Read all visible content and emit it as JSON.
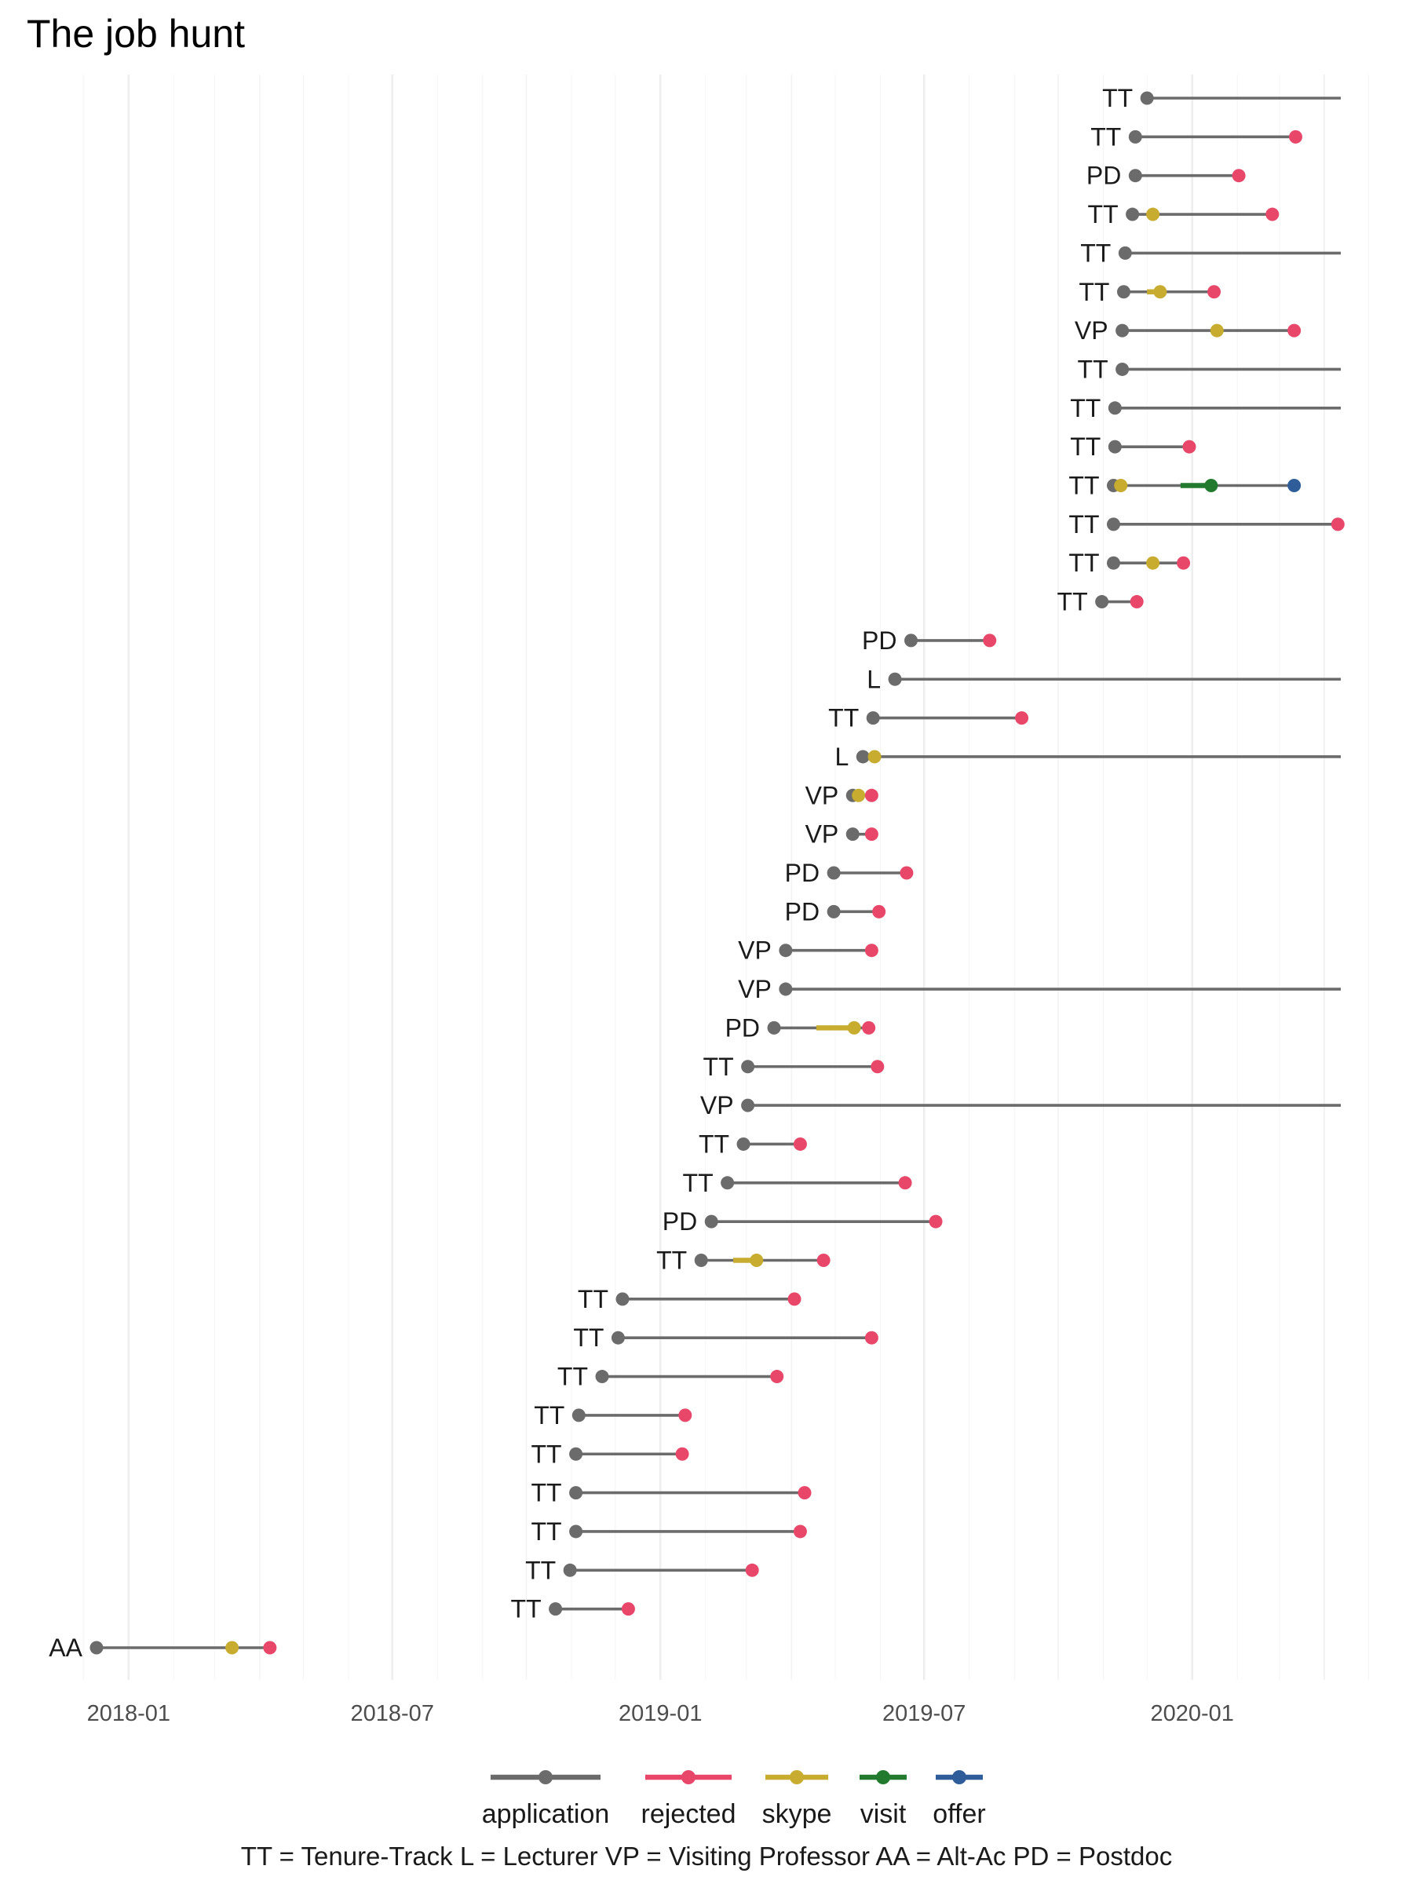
{
  "chart_data": {
    "type": "timeline",
    "title": "The job hunt",
    "x_axis": {
      "type": "date",
      "range": [
        "2017-11-05",
        "2020-05-10"
      ],
      "ticks": [
        "2018-01-01",
        "2018-07-01",
        "2019-01-01",
        "2019-07-01",
        "2020-01-01"
      ],
      "tick_labels": [
        "2018-01",
        "2018-07",
        "2019-01",
        "2019-07",
        "2020-01"
      ],
      "end_date": "2020-04-12"
    },
    "grid": true,
    "stages": [
      {
        "key": "application",
        "name": "application",
        "color": "#6b6b6b"
      },
      {
        "key": "rejected",
        "name": "rejected",
        "color": "#e8476a"
      },
      {
        "key": "skype",
        "name": "skype",
        "color": "#c7ac30"
      },
      {
        "key": "visit",
        "name": "visit",
        "color": "#217a2e"
      },
      {
        "key": "offer",
        "name": "offer",
        "color": "#2f5d99"
      }
    ],
    "legend_position": "bottom",
    "caption": "TT = Tenure-Track    L = Lecturer    VP = Visiting Professor    AA = Alt-Ac    PD = Postdoc",
    "jobs": [
      {
        "label": "TT",
        "application": "2019-12-01",
        "open": true
      },
      {
        "label": "TT",
        "application": "2019-11-23",
        "rejected": "2020-03-12"
      },
      {
        "label": "PD",
        "application": "2019-11-23",
        "rejected": "2020-02-02"
      },
      {
        "label": "TT",
        "application": "2019-11-21",
        "skype": "2019-12-05",
        "rejected": "2020-02-25"
      },
      {
        "label": "TT",
        "application": "2019-11-16",
        "open": true
      },
      {
        "label": "TT",
        "application": "2019-11-15",
        "skype_start": "2019-12-01",
        "skype": "2019-12-10",
        "rejected": "2020-01-16"
      },
      {
        "label": "VP",
        "application": "2019-11-14",
        "skype": "2020-01-18",
        "rejected": "2020-03-11"
      },
      {
        "label": "TT",
        "application": "2019-11-14",
        "open": true
      },
      {
        "label": "TT",
        "application": "2019-11-09",
        "open": true
      },
      {
        "label": "TT",
        "application": "2019-11-09",
        "rejected": "2019-12-30"
      },
      {
        "label": "TT",
        "application": "2019-11-08",
        "skype": "2019-11-13",
        "visit_start": "2019-12-24",
        "visit": "2020-01-14",
        "offer": "2020-03-11"
      },
      {
        "label": "TT",
        "application": "2019-11-08",
        "rejected": "2020-04-10"
      },
      {
        "label": "TT",
        "application": "2019-11-08",
        "skype": "2019-12-05",
        "rejected": "2019-12-26"
      },
      {
        "label": "TT",
        "application": "2019-10-31",
        "rejected": "2019-11-24"
      },
      {
        "label": "PD",
        "application": "2019-06-22",
        "rejected": "2019-08-15"
      },
      {
        "label": "L",
        "application": "2019-06-11",
        "open": true
      },
      {
        "label": "TT",
        "application": "2019-05-27",
        "rejected": "2019-09-06"
      },
      {
        "label": "L",
        "application": "2019-05-20",
        "skype": "2019-05-28",
        "open": true
      },
      {
        "label": "VP",
        "application": "2019-05-13",
        "skype": "2019-05-17",
        "rejected": "2019-05-26"
      },
      {
        "label": "VP",
        "application": "2019-05-13",
        "rejected": "2019-05-26"
      },
      {
        "label": "PD",
        "application": "2019-04-30",
        "rejected": "2019-06-19"
      },
      {
        "label": "PD",
        "application": "2019-04-30",
        "rejected": "2019-05-31"
      },
      {
        "label": "VP",
        "application": "2019-03-28",
        "rejected": "2019-05-26"
      },
      {
        "label": "VP",
        "application": "2019-03-28",
        "open": true
      },
      {
        "label": "PD",
        "application": "2019-03-20",
        "skype_start": "2019-04-18",
        "skype": "2019-05-14",
        "rejected": "2019-05-24"
      },
      {
        "label": "TT",
        "application": "2019-03-02",
        "rejected": "2019-05-30"
      },
      {
        "label": "VP",
        "application": "2019-03-02",
        "open": true
      },
      {
        "label": "TT",
        "application": "2019-02-27",
        "rejected": "2019-04-07"
      },
      {
        "label": "TT",
        "application": "2019-02-16",
        "rejected": "2019-06-18"
      },
      {
        "label": "PD",
        "application": "2019-02-05",
        "rejected": "2019-07-09"
      },
      {
        "label": "TT",
        "application": "2019-01-29",
        "skype_start": "2019-02-20",
        "skype": "2019-03-08",
        "rejected": "2019-04-23"
      },
      {
        "label": "TT",
        "application": "2018-12-06",
        "rejected": "2019-04-03"
      },
      {
        "label": "TT",
        "application": "2018-12-03",
        "rejected": "2019-05-26"
      },
      {
        "label": "TT",
        "application": "2018-11-22",
        "rejected": "2019-03-22"
      },
      {
        "label": "TT",
        "application": "2018-11-06",
        "rejected": "2019-01-18"
      },
      {
        "label": "TT",
        "application": "2018-11-04",
        "rejected": "2019-01-16"
      },
      {
        "label": "TT",
        "application": "2018-11-04",
        "rejected": "2019-04-10"
      },
      {
        "label": "TT",
        "application": "2018-11-04",
        "rejected": "2019-04-07"
      },
      {
        "label": "TT",
        "application": "2018-10-31",
        "rejected": "2019-03-05"
      },
      {
        "label": "TT",
        "application": "2018-10-21",
        "rejected": "2018-12-10"
      },
      {
        "label": "AA",
        "application": "2017-12-10",
        "skype": "2018-03-13",
        "rejected": "2018-04-08"
      }
    ]
  }
}
